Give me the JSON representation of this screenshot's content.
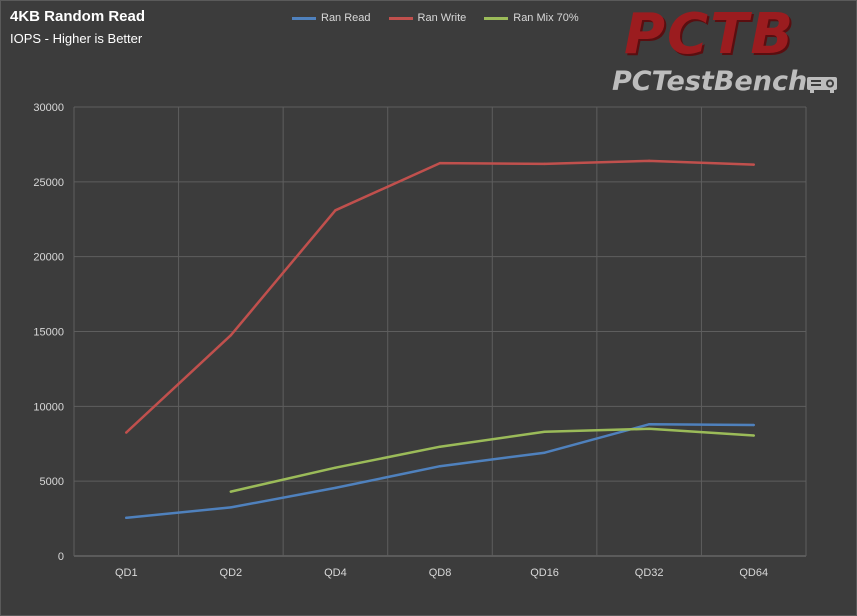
{
  "chart_data": {
    "type": "line",
    "title": "4KB Random Read",
    "subtitle": "IOPS - Higher is Better",
    "categories": [
      "QD1",
      "QD2",
      "QD4",
      "QD8",
      "QD16",
      "QD32",
      "QD64"
    ],
    "ylim": [
      0,
      30000
    ],
    "yticks": [
      0,
      5000,
      10000,
      15000,
      20000,
      25000,
      30000
    ],
    "grid": true,
    "legend_position": "top",
    "series": [
      {
        "name": "Ran Read",
        "color": "#4f81bd",
        "values": [
          2550,
          3250,
          4550,
          6000,
          6900,
          8800,
          8750
        ]
      },
      {
        "name": "Ran Write",
        "color": "#c0504d",
        "values": [
          8250,
          14750,
          23100,
          26250,
          26200,
          26400,
          26150
        ]
      },
      {
        "name": "Ran Mix 70%",
        "color": "#9bbb59",
        "values": [
          null,
          4300,
          5900,
          7300,
          8300,
          8500,
          8050
        ]
      }
    ]
  },
  "logo": {
    "text_big": "PCTB",
    "text_small": "PCTestBench",
    "icon": "projector-icon"
  }
}
